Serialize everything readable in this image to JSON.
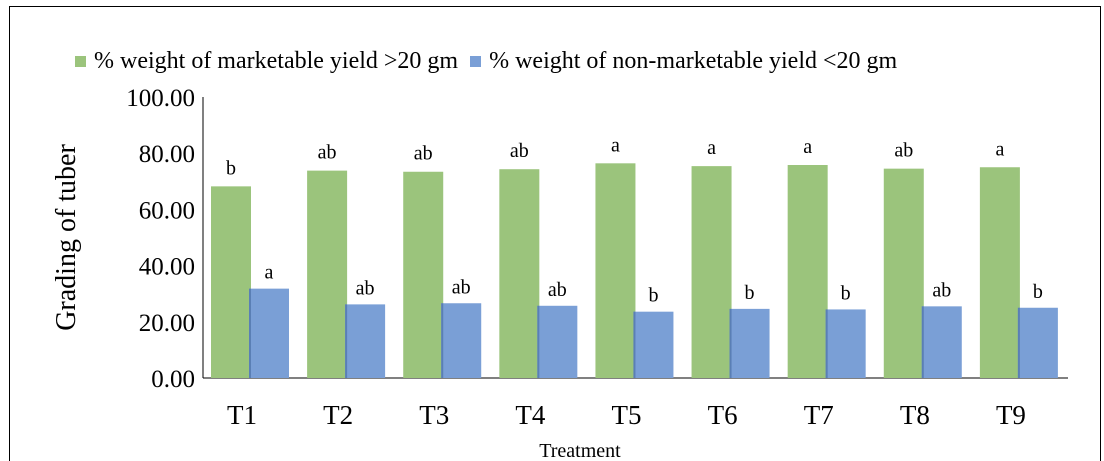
{
  "chart_data": {
    "type": "bar",
    "title": "",
    "xlabel": "Treatment",
    "ylabel": "Grading of tuber",
    "ylim": [
      0,
      100
    ],
    "yticks": [
      "0.00",
      "20.00",
      "40.00",
      "60.00",
      "80.00",
      "100.00"
    ],
    "categories": [
      "T1",
      "T2",
      "T3",
      "T4",
      "T5",
      "T6",
      "T7",
      "T8",
      "T9"
    ],
    "legend_position": "top",
    "grid": false,
    "series": [
      {
        "name": "% weight of marketable yield >20 gm",
        "color": "#9bc47c",
        "values": [
          68.2,
          73.8,
          73.4,
          74.3,
          76.4,
          75.4,
          75.8,
          74.5,
          75.0
        ],
        "labels": [
          "b",
          "ab",
          "ab",
          "ab",
          "a",
          "a",
          "a",
          "ab",
          "a"
        ]
      },
      {
        "name": "% weight of non-marketable yield <20 gm",
        "color": "#7a9fd6",
        "values": [
          31.8,
          26.2,
          26.6,
          25.7,
          23.6,
          24.6,
          24.4,
          25.5,
          25.0
        ],
        "labels": [
          "a",
          "ab",
          "ab",
          "ab",
          "b",
          "b",
          "b",
          "ab",
          "b"
        ]
      }
    ]
  }
}
